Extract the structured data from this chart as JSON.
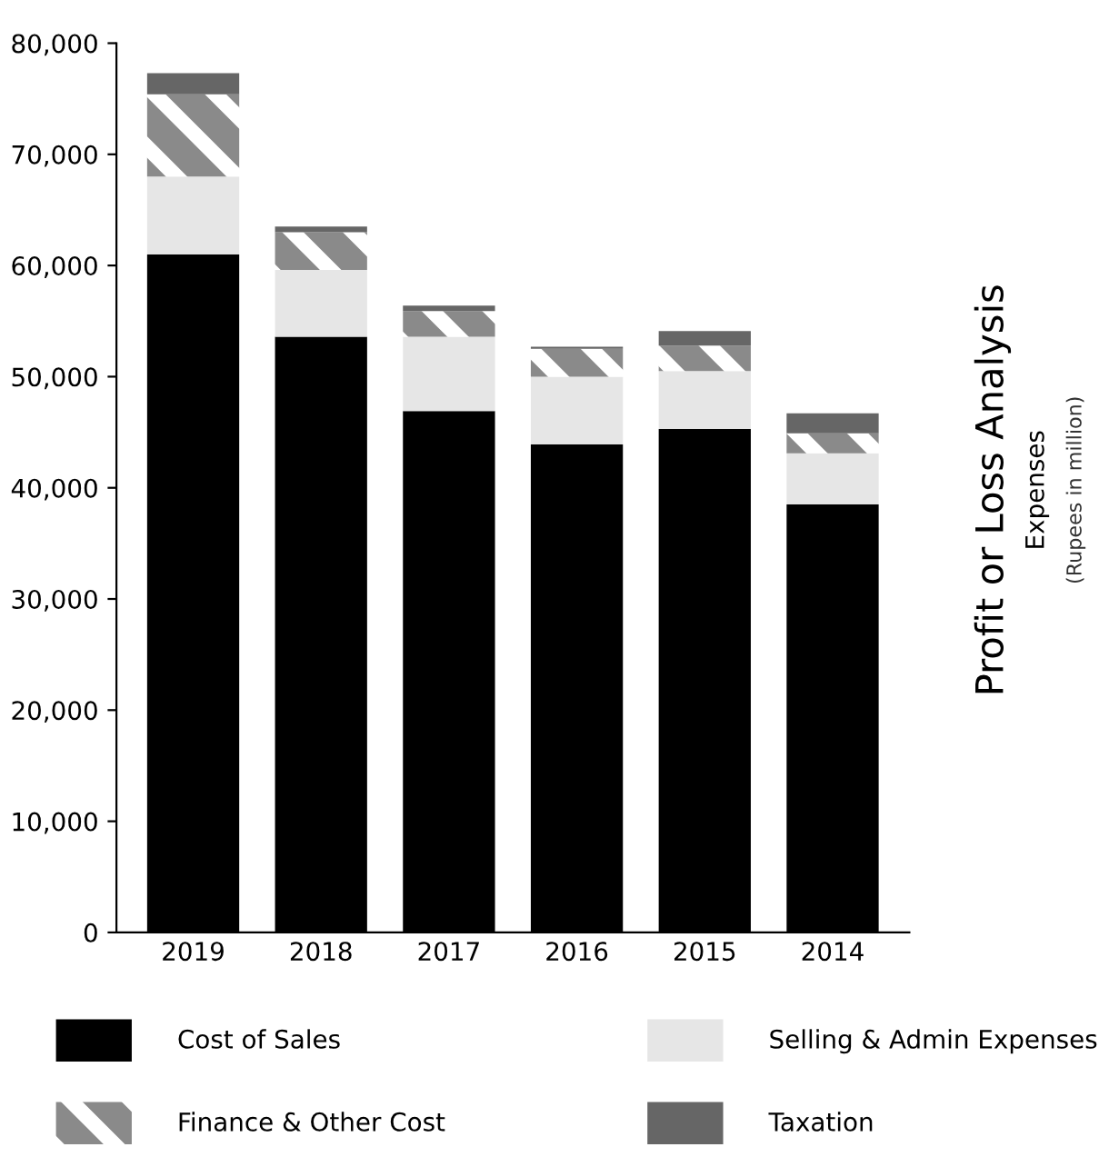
{
  "chart_data": {
    "type": "bar",
    "stacked": true,
    "title": "Profit or Loss Analysis",
    "subtitle": "Expenses",
    "annotations": [
      "(Rupees in million)"
    ],
    "categories": [
      "2019",
      "2018",
      "2017",
      "2016",
      "2015",
      "2014"
    ],
    "series": [
      {
        "name": "Cost of Sales",
        "color": "#000000",
        "values": [
          61000,
          53600,
          46900,
          43900,
          45300,
          38500
        ]
      },
      {
        "name": "Selling & Admin Expenses",
        "color": "#e6e6e6",
        "values": [
          7000,
          6000,
          6700,
          6100,
          5200,
          4600
        ]
      },
      {
        "name": "Finance & Other Cost",
        "color": "#8a8a8a",
        "values": [
          7400,
          3400,
          2300,
          2500,
          2300,
          1800
        ]
      },
      {
        "name": "Taxation",
        "color": "#666666",
        "values": [
          1900,
          500,
          500,
          200,
          1300,
          1800
        ]
      }
    ],
    "ylim": [
      0,
      80000
    ],
    "yticks": [
      {
        "value": 0,
        "label": "0"
      },
      {
        "value": 10000,
        "label": "10,000"
      },
      {
        "value": 20000,
        "label": "20,000"
      },
      {
        "value": 30000,
        "label": "30,000"
      },
      {
        "value": 40000,
        "label": "40,000"
      },
      {
        "value": 50000,
        "label": "50,000"
      },
      {
        "value": 60000,
        "label": "60,000"
      },
      {
        "value": 70000,
        "label": "70,000"
      },
      {
        "value": 80000,
        "label": "80,000"
      }
    ],
    "grid": false,
    "legend": "bottom"
  }
}
